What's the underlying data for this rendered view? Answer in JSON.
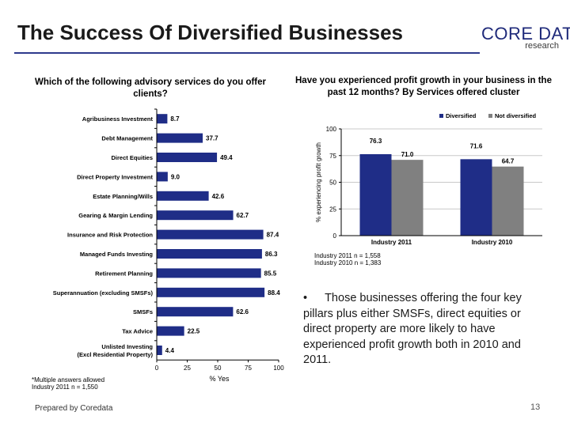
{
  "page": {
    "title": "The Success Of Diversified Businesses",
    "footer": "Prepared by Coredata",
    "page_number": "13",
    "logo": {
      "brand": "CORE DATA",
      "sub": "research"
    },
    "accent_color": "#2e3a8c"
  },
  "left_panel": {
    "question": "Which of the following advisory services do you offer clients?"
  },
  "right_panel": {
    "question": "Have you experienced profit growth in your business in the past 12 months? By Services offered cluster"
  },
  "bullet": {
    "marker": "•",
    "text": "Those businesses offering the four key pillars plus either SMSFs, direct equities or direct property are more likely to have experienced profit growth both in 2010 and 2011."
  },
  "chart_data": [
    {
      "type": "bar",
      "orientation": "horizontal",
      "categories": [
        "Agribusiness Investment",
        "Debt Management",
        "Direct Equities",
        "Direct Property Investment",
        "Estate Planning/Wills",
        "Gearing & Margin Lending",
        "Insurance and Risk Protection",
        "Managed Funds Investing",
        "Retirement Planning",
        "Superannuation (excluding SMSFs)",
        "SMSFs",
        "Tax Advice",
        "Unlisted Investing (Excl Residential Property)"
      ],
      "values": [
        8.7,
        37.7,
        49.4,
        9.0,
        42.6,
        62.7,
        87.4,
        86.3,
        85.5,
        88.4,
        62.6,
        22.5,
        4.4
      ],
      "value_labels": [
        "8.7",
        "37.7",
        "49.4",
        "9.0",
        "42.6",
        "62.7",
        "87.4",
        "86.3",
        "85.5",
        "88.4",
        "62.6",
        "22.5",
        "4.4"
      ],
      "xlim": [
        0,
        100
      ],
      "xticks": [
        "0",
        "25",
        "50",
        "75",
        "100"
      ],
      "xlabel": "% Yes",
      "bar_color": "#1f2d87",
      "notes": [
        "*Multiple answers allowed",
        "Industry 2011 n = 1,550"
      ]
    },
    {
      "type": "bar",
      "orientation": "vertical",
      "categories": [
        "Industry 2011",
        "Industry 2010"
      ],
      "series": [
        {
          "name": "Diversified",
          "values": [
            76.3,
            71.6
          ],
          "labels": [
            "76.3",
            "71.6"
          ],
          "color": "#1f2d87"
        },
        {
          "name": "Not diversified",
          "values": [
            71.0,
            64.7
          ],
          "labels": [
            "71.0",
            "64.7"
          ],
          "color": "#808080"
        }
      ],
      "ylim": [
        0,
        100
      ],
      "yticks": [
        "0",
        "25",
        "50",
        "75",
        "100"
      ],
      "ylabel": "% experiencing profit growth",
      "legend_position": "top-right",
      "notes": [
        "Industry 2011 n = 1,558",
        "Industry 2010 n = 1,383"
      ]
    }
  ]
}
